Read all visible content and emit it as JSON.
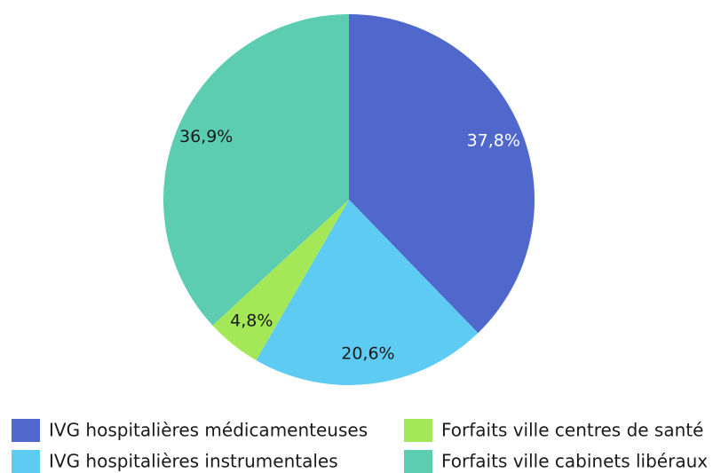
{
  "chart_data": {
    "type": "pie",
    "categories": [
      "IVG hospitalières médicamenteuses",
      "IVG hospitalières instrumentales",
      "Forfaits ville centres de santé",
      "Forfaits ville cabinets libéraux"
    ],
    "values": [
      37.8,
      20.6,
      4.8,
      36.9
    ],
    "value_labels": [
      "37,8%",
      "20,6%",
      "4,8%",
      "36,9%"
    ],
    "colors": [
      "#5068cc",
      "#5ecbf3",
      "#a4e858",
      "#5ccdb0"
    ],
    "legend": "bottom"
  }
}
